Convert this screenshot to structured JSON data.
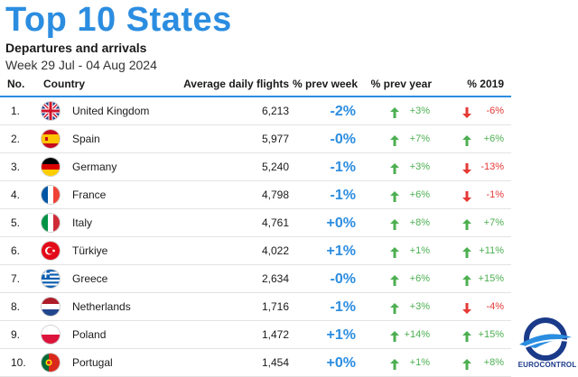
{
  "header": {
    "title": "Top 10 States",
    "subtitle": "Departures and arrivals",
    "dates": "Week 29 Jul - 04 Aug 2024"
  },
  "columns": {
    "no": "No.",
    "country": "Country",
    "flights": "Average daily flights",
    "prev_week": "% prev week",
    "prev_year": "% prev year",
    "y2019": "% 2019"
  },
  "rows": [
    {
      "rank": "1.",
      "country": "United Kingdom",
      "flag": "uk-flag",
      "flights": "6,213",
      "prev_week": "-2%",
      "prev_year": "+3%",
      "prev_year_dir": "up",
      "y2019": "-6%",
      "y2019_dir": "down"
    },
    {
      "rank": "2.",
      "country": "Spain",
      "flag": "spain-flag",
      "flights": "5,977",
      "prev_week": "-0%",
      "prev_year": "+7%",
      "prev_year_dir": "up",
      "y2019": "+6%",
      "y2019_dir": "up"
    },
    {
      "rank": "3.",
      "country": "Germany",
      "flag": "germany-flag",
      "flights": "5,240",
      "prev_week": "-1%",
      "prev_year": "+3%",
      "prev_year_dir": "up",
      "y2019": "-13%",
      "y2019_dir": "down"
    },
    {
      "rank": "4.",
      "country": "France",
      "flag": "france-flag",
      "flights": "4,798",
      "prev_week": "-1%",
      "prev_year": "+6%",
      "prev_year_dir": "up",
      "y2019": "-1%",
      "y2019_dir": "down"
    },
    {
      "rank": "5.",
      "country": "Italy",
      "flag": "italy-flag",
      "flights": "4,761",
      "prev_week": "+0%",
      "prev_year": "+8%",
      "prev_year_dir": "up",
      "y2019": "+7%",
      "y2019_dir": "up"
    },
    {
      "rank": "6.",
      "country": "Türkiye",
      "flag": "turkiye-flag",
      "flights": "4,022",
      "prev_week": "+1%",
      "prev_year": "+1%",
      "prev_year_dir": "up",
      "y2019": "+11%",
      "y2019_dir": "up"
    },
    {
      "rank": "7.",
      "country": "Greece",
      "flag": "greece-flag",
      "flights": "2,634",
      "prev_week": "-0%",
      "prev_year": "+6%",
      "prev_year_dir": "up",
      "y2019": "+15%",
      "y2019_dir": "up"
    },
    {
      "rank": "8.",
      "country": "Netherlands",
      "flag": "netherlands-flag",
      "flights": "1,716",
      "prev_week": "-1%",
      "prev_year": "+3%",
      "prev_year_dir": "up",
      "y2019": "-4%",
      "y2019_dir": "down"
    },
    {
      "rank": "9.",
      "country": "Poland",
      "flag": "poland-flag",
      "flights": "1,472",
      "prev_week": "+1%",
      "prev_year": "+14%",
      "prev_year_dir": "up",
      "y2019": "+15%",
      "y2019_dir": "up"
    },
    {
      "rank": "10.",
      "country": "Portugal",
      "flag": "portugal-flag",
      "flights": "1,454",
      "prev_week": "+0%",
      "prev_year": "+1%",
      "prev_year_dir": "up",
      "y2019": "+8%",
      "y2019_dir": "up"
    }
  ],
  "logo": {
    "name": "eurocontrol-logo",
    "text": "EUROCONTROL"
  },
  "colors": {
    "accent": "#2b8de0",
    "up": "#4caf50",
    "down": "#e53935",
    "logo_blue": "#1a3a8a"
  }
}
